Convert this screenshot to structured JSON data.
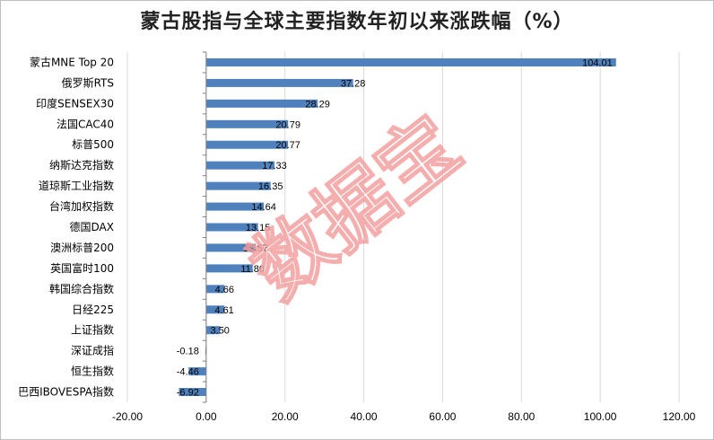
{
  "chart_data": {
    "type": "bar",
    "orientation": "horizontal",
    "title": "蒙古股指与全球主要指数年初以来涨跌幅（%）",
    "categories": [
      "蒙古MNE Top 20",
      "俄罗斯RTS",
      "印度SENSEX30",
      "法国CAC40",
      "标普500",
      "纳斯达克指数",
      "道琼斯工业指数",
      "台湾加权指数",
      "德国DAX",
      "澳洲标普200",
      "英国富时100",
      "韩国综合指数",
      "日经225",
      "上证指数",
      "深证成指",
      "恒生指数",
      "巴西IBOVESPA指数"
    ],
    "values": [
      104.01,
      37.28,
      28.29,
      20.79,
      20.77,
      17.33,
      16.35,
      14.64,
      13.15,
      12.57,
      11.8,
      4.66,
      4.61,
      3.5,
      -0.18,
      -4.46,
      -6.92
    ],
    "value_labels": [
      "104.01",
      "37.28",
      "28.29",
      "20.79",
      "20.77",
      "17.33",
      "16.35",
      "14.64",
      "13.15",
      "12.57",
      "11.80",
      "4.66",
      "4.61",
      "3.50",
      "-0.18",
      "-4.46",
      "-6.92"
    ],
    "xlim": [
      -20,
      120
    ],
    "xticks": [
      "-20.00",
      "0.00",
      "20.00",
      "40.00",
      "60.00",
      "80.00",
      "100.00",
      "120.00"
    ],
    "xtick_values": [
      -20,
      0,
      20,
      40,
      60,
      80,
      100,
      120
    ],
    "grid": "vertical",
    "legend": "none",
    "bar_color": "#4f81bd",
    "grid_color": "#d9d9d9",
    "watermark": "数据宝",
    "watermark_color": "#f4a0a0"
  }
}
